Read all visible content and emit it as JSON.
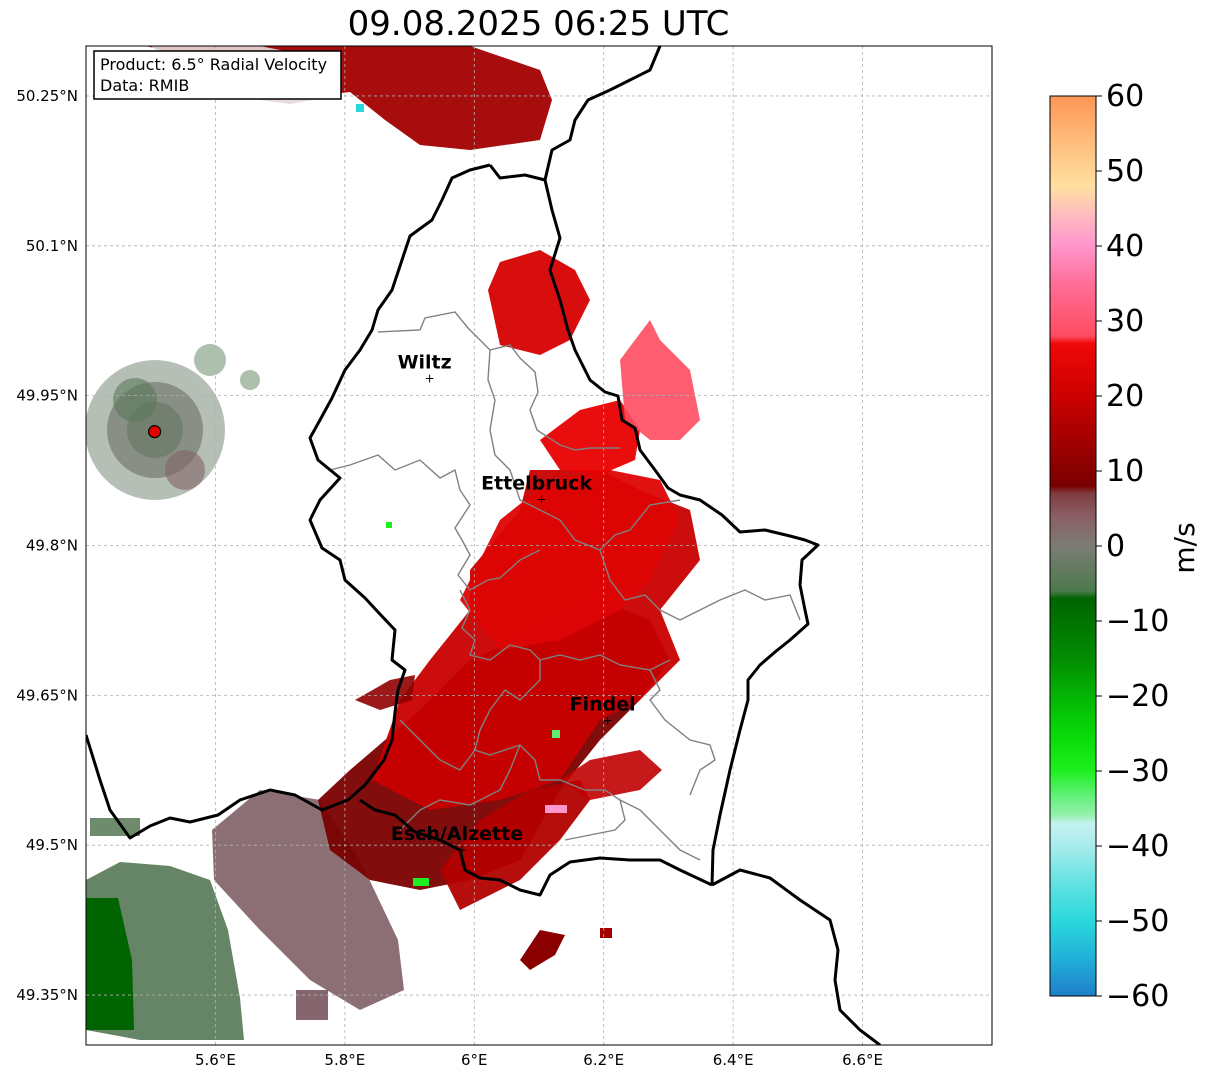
{
  "title": "09.08.2025 06:25 UTC",
  "info_box": {
    "product_line": "Product: 6.5° Radial Velocity",
    "data_line": "Data: RMIB"
  },
  "map": {
    "lon_range": [
      5.4,
      6.8
    ],
    "lat_range": [
      49.3,
      50.3
    ],
    "gridlines": true,
    "x_ticks": [
      {
        "value": 5.6,
        "label": "5.6°E"
      },
      {
        "value": 5.8,
        "label": "5.8°E"
      },
      {
        "value": 6.0,
        "label": "6°E"
      },
      {
        "value": 6.2,
        "label": "6.2°E"
      },
      {
        "value": 6.4,
        "label": "6.4°E"
      },
      {
        "value": 6.6,
        "label": "6.6°E"
      }
    ],
    "y_ticks": [
      {
        "value": 50.25,
        "label": "50.25°N"
      },
      {
        "value": 50.1,
        "label": "50.1°N"
      },
      {
        "value": 49.95,
        "label": "49.95°N"
      },
      {
        "value": 49.8,
        "label": "49.8°N"
      },
      {
        "value": 49.65,
        "label": "49.65°N"
      },
      {
        "value": 49.5,
        "label": "49.5°N"
      },
      {
        "value": 49.35,
        "label": "49.35°N"
      }
    ],
    "cities": [
      {
        "name": "Wiltz",
        "lon": 5.931,
        "lat": 49.968
      },
      {
        "name": "Ettelbruck",
        "lon": 6.104,
        "lat": 49.847
      },
      {
        "name": "Findel",
        "lon": 6.206,
        "lat": 49.626
      },
      {
        "name": "Esch/Alzette",
        "lon": 5.981,
        "lat": 49.496
      }
    ],
    "radar_site": {
      "lon": 5.506,
      "lat": 49.914
    },
    "colors": {
      "border": "#000000",
      "canton_border": "#808080",
      "grid": "#b0b0b0",
      "radar_marker": "#e00000"
    }
  },
  "colorbar": {
    "label": "m/s",
    "min": -60,
    "max": 60,
    "ticks": [
      {
        "value": 60,
        "label": "60"
      },
      {
        "value": 50,
        "label": "50"
      },
      {
        "value": 40,
        "label": "40"
      },
      {
        "value": 30,
        "label": "30"
      },
      {
        "value": 20,
        "label": "20"
      },
      {
        "value": 10,
        "label": "10"
      },
      {
        "value": 0,
        "label": "0"
      },
      {
        "value": -10,
        "label": "−10"
      },
      {
        "value": -20,
        "label": "−20"
      },
      {
        "value": -30,
        "label": "−30"
      },
      {
        "value": -40,
        "label": "−40"
      },
      {
        "value": -50,
        "label": "−50"
      },
      {
        "value": -60,
        "label": "−60"
      }
    ],
    "color_stops": [
      {
        "value": -60,
        "color": "#1e7fc8"
      },
      {
        "value": -55,
        "color": "#22b0d8"
      },
      {
        "value": -50,
        "color": "#2ad8dc"
      },
      {
        "value": -45,
        "color": "#62e2e2"
      },
      {
        "value": -40,
        "color": "#a8ecec"
      },
      {
        "value": -37,
        "color": "#c4f2f0"
      },
      {
        "value": -36,
        "color": "#98f0b0"
      },
      {
        "value": -33,
        "color": "#5cf070"
      },
      {
        "value": -30,
        "color": "#1ef020"
      },
      {
        "value": -25,
        "color": "#08d808"
      },
      {
        "value": -20,
        "color": "#04b404"
      },
      {
        "value": -15,
        "color": "#028c02"
      },
      {
        "value": -7,
        "color": "#006400"
      },
      {
        "value": -6,
        "color": "#4c7a4c"
      },
      {
        "value": 0,
        "color": "#7c7c74"
      },
      {
        "value": 4,
        "color": "#8a5e64"
      },
      {
        "value": 7,
        "color": "#7e3c40"
      },
      {
        "value": 8,
        "color": "#7a0000"
      },
      {
        "value": 14,
        "color": "#a20000"
      },
      {
        "value": 20,
        "color": "#cc0000"
      },
      {
        "value": 27,
        "color": "#f00808"
      },
      {
        "value": 28,
        "color": "#ff4c60"
      },
      {
        "value": 35,
        "color": "#ff6e98"
      },
      {
        "value": 40,
        "color": "#ff96cc"
      },
      {
        "value": 44,
        "color": "#ffbac0"
      },
      {
        "value": 48,
        "color": "#ffe0a0"
      },
      {
        "value": 52,
        "color": "#ffc888"
      },
      {
        "value": 60,
        "color": "#ff9654"
      }
    ]
  }
}
